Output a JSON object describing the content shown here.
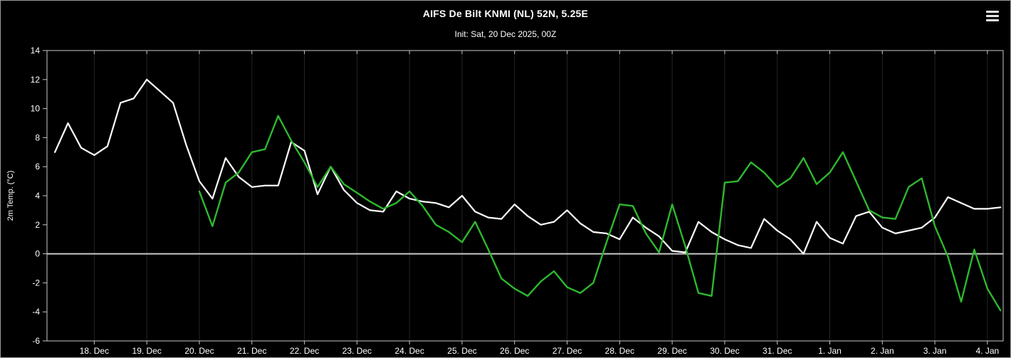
{
  "header": {
    "title": "AIFS De Bilt KNMI (NL) 52N, 5.25E",
    "subtitle": "Init: Sat, 20 Dec 2025, 00Z"
  },
  "menu": {
    "icon": "hamburger-icon"
  },
  "colors": {
    "background": "#000000",
    "axis": "#c8c8c8",
    "text": "#ffffff",
    "grid": "#242424",
    "zero_line": "#c8c8c8",
    "series_white": "#ffffff",
    "series_green": "#2eb82e"
  },
  "chart_data": {
    "type": "line",
    "title": "AIFS De Bilt KNMI (NL) 52N, 5.25E",
    "subtitle": "Init: Sat, 20 Dec 2025, 00Z",
    "xlabel": "",
    "ylabel": "2m Temp. (°C)",
    "ylim": [
      -6,
      14
    ],
    "y_ticks": [
      -6,
      -4,
      -2,
      0,
      2,
      4,
      6,
      8,
      10,
      12,
      14
    ],
    "xlim": [
      17.1,
      35.3
    ],
    "x_unit": "day number (Dec 18 = 18 ... Jan 4 = 35), points every 6 h",
    "x_ticks": [
      18,
      19,
      20,
      21,
      22,
      23,
      24,
      25,
      26,
      27,
      28,
      29,
      30,
      31,
      32,
      33,
      34,
      35
    ],
    "x_tick_labels": [
      "18. Dec",
      "19. Dec",
      "20. Dec",
      "21. Dec",
      "22. Dec",
      "23. Dec",
      "24. Dec",
      "25. Dec",
      "26. Dec",
      "27. Dec",
      "28. Dec",
      "29. Dec",
      "30. Dec",
      "31. Dec",
      "1. Jan",
      "2. Jan",
      "3. Jan",
      "4. Jan"
    ],
    "grid": "faint vertical lines at day ticks",
    "legend_position": "none",
    "zero_line": true,
    "zero_line_color": "#c8c8c8",
    "series": [
      {
        "name": "white-line",
        "color": "#ffffff",
        "width": 2.2,
        "x_start": 17.25,
        "x_step_days": 0.25,
        "values": [
          7.0,
          9.0,
          7.3,
          6.8,
          7.4,
          10.4,
          10.7,
          12.0,
          11.2,
          10.4,
          7.5,
          5.0,
          3.8,
          6.6,
          5.3,
          4.6,
          4.7,
          4.7,
          7.7,
          7.1,
          4.1,
          6.0,
          4.4,
          3.5,
          3.0,
          2.9,
          4.3,
          3.8,
          3.6,
          3.5,
          3.2,
          4.0,
          2.9,
          2.5,
          2.4,
          3.4,
          2.6,
          2.0,
          2.2,
          3.0,
          2.1,
          1.5,
          1.4,
          1.0,
          2.5,
          1.8,
          1.2,
          0.2,
          0.1,
          2.2,
          1.5,
          1.0,
          0.6,
          0.4,
          2.4,
          1.6,
          1.0,
          0.0,
          2.2,
          1.1,
          0.7,
          2.6,
          2.9,
          1.8,
          1.4,
          1.6,
          1.8,
          2.5,
          3.9,
          3.5,
          3.1,
          3.1,
          3.2
        ]
      },
      {
        "name": "green-line",
        "color": "#2eb82e",
        "width": 2.4,
        "x_start": 20.0,
        "x_step_days": 0.25,
        "values": [
          4.3,
          1.9,
          4.9,
          5.6,
          7.0,
          7.2,
          9.5,
          7.8,
          6.3,
          4.6,
          6.0,
          4.8,
          4.2,
          3.6,
          3.1,
          3.5,
          4.3,
          3.3,
          2.0,
          1.5,
          0.8,
          2.2,
          0.3,
          -1.7,
          -2.4,
          -2.9,
          -1.9,
          -1.2,
          -2.3,
          -2.7,
          -2.0,
          0.8,
          3.4,
          3.3,
          1.4,
          0.1,
          3.4,
          0.5,
          -2.7,
          -2.9,
          4.9,
          5.0,
          6.3,
          5.6,
          4.6,
          5.2,
          6.6,
          4.8,
          5.6,
          7.0,
          5.0,
          3.0,
          2.5,
          2.4,
          4.6,
          5.2,
          1.9,
          -0.2,
          -3.3,
          0.3,
          -2.4,
          -3.9
        ]
      }
    ]
  }
}
